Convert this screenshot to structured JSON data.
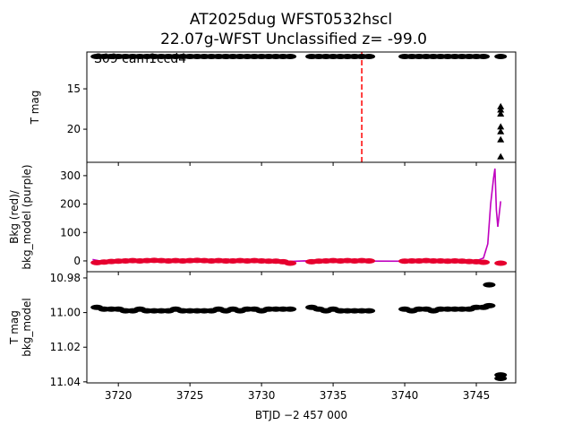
{
  "chart_data": [
    {
      "type": "scatter",
      "title": "AT2025dug  WFST0532hscl",
      "subtitle": "22.07g-WFST Unclassified z= -99.0",
      "ylabel": "T mag",
      "annotation": "S09 cam1ccd4",
      "invert_y": true,
      "xlim": [
        3717.8,
        3747.75
      ],
      "xticks": [
        3720,
        3725,
        3730,
        3735,
        3740,
        3745
      ],
      "ylim": [
        24.1,
        10.44
      ],
      "yticks": [
        15,
        20
      ],
      "vline": 3737.0,
      "vline_color": "#ff0000",
      "series": [
        {
          "marker": "circle",
          "color": "#000000",
          "x": [
            3718.5,
            3719,
            3719.5,
            3720,
            3720.5,
            3721,
            3721.5,
            3722,
            3722.5,
            3723,
            3723.5,
            3724,
            3724.5,
            3725,
            3725.5,
            3726,
            3726.5,
            3727,
            3727.5,
            3728,
            3728.5,
            3729,
            3729.5,
            3730,
            3730.5,
            3731,
            3731.5,
            3732,
            3733.5,
            3734,
            3734.5,
            3735,
            3735.5,
            3736,
            3736.5,
            3737,
            3737.5,
            3740,
            3740.5,
            3741,
            3741.5,
            3742,
            3742.5,
            3743,
            3743.5,
            3744,
            3744.5,
            3745,
            3745.5,
            3746.7
          ],
          "values": [
            11,
            11,
            11,
            11,
            11,
            11,
            11,
            11,
            11,
            11,
            11,
            11,
            11,
            11,
            11,
            11,
            11,
            11,
            11,
            11,
            11,
            11,
            11,
            11,
            11,
            11,
            11,
            11,
            11,
            11,
            11,
            11,
            11,
            11,
            11,
            11,
            11,
            11,
            11,
            11,
            11,
            11,
            11,
            11,
            11,
            11,
            11,
            11,
            11,
            11
          ]
        },
        {
          "marker": "triangle",
          "color": "#000000",
          "x": [
            3746.7,
            3746.7,
            3746.7,
            3746.7,
            3746.7,
            3746.7,
            3746.7
          ],
          "values": [
            17.2,
            17.6,
            18.1,
            19.7,
            20.3,
            21.3,
            23.4
          ]
        }
      ]
    },
    {
      "type": "scatter",
      "ylabel": "Bkg (red)/\nbkg_model (purple)",
      "xlim": [
        3717.8,
        3747.75
      ],
      "xticks": [
        3720,
        3725,
        3730,
        3735,
        3740,
        3745
      ],
      "ylim": [
        -38,
        347
      ],
      "yticks": [
        0,
        100,
        200,
        300
      ],
      "series": [
        {
          "marker": "line",
          "color": "#bf00bf",
          "x": [
            3718.2,
            3719,
            3725,
            3732,
            3733,
            3740,
            3745,
            3745.5,
            3745.8,
            3746.0,
            3746.2,
            3746.3,
            3746.4,
            3746.5,
            3746.7
          ],
          "values": [
            5,
            -3,
            0,
            -2,
            0,
            -1,
            0,
            10,
            60,
            200,
            290,
            325,
            180,
            120,
            210
          ]
        },
        {
          "marker": "circle",
          "color": "#e6002e",
          "x": [
            3718.5,
            3719,
            3719.5,
            3720,
            3720.5,
            3721,
            3721.5,
            3722,
            3722.5,
            3723,
            3723.5,
            3724,
            3724.5,
            3725,
            3725.5,
            3726,
            3726.5,
            3727,
            3727.5,
            3728,
            3728.5,
            3729,
            3729.5,
            3730,
            3730.5,
            3731,
            3731.5,
            3732,
            3733.5,
            3734,
            3734.5,
            3735,
            3735.5,
            3736,
            3736.5,
            3737,
            3737.5,
            3740,
            3740.5,
            3741,
            3741.5,
            3742,
            3742.5,
            3743,
            3743.5,
            3744,
            3744.5,
            3745,
            3745.5,
            3746.7
          ],
          "values": [
            -6,
            -4,
            -2,
            -1,
            0,
            1,
            0,
            1,
            2,
            1,
            0,
            1,
            0,
            1,
            2,
            1,
            0,
            1,
            0,
            0,
            1,
            0,
            1,
            0,
            -1,
            -1,
            -3,
            -8,
            -3,
            -1,
            0,
            1,
            0,
            1,
            0,
            1,
            0,
            -1,
            0,
            0,
            1,
            0,
            0,
            -1,
            0,
            -1,
            -2,
            -3,
            -5,
            -8
          ]
        }
      ]
    },
    {
      "type": "scatter",
      "ylabel": "T mag\nbkg_model",
      "xlabel": "BTJD −2 457 000",
      "invert_y": true,
      "xlim": [
        3717.8,
        3747.75
      ],
      "xticks": [
        3720,
        3725,
        3730,
        3735,
        3740,
        3745
      ],
      "ylim": [
        11.0406,
        10.9764
      ],
      "yticks": [
        {
          "value": 10.98,
          "label": "10.98"
        },
        {
          "value": 11.0,
          "label": "11.00"
        },
        {
          "value": 11.02,
          "label": "11.02"
        },
        {
          "value": 11.04,
          "label": "11.04"
        }
      ],
      "series": [
        {
          "marker": "circle",
          "color": "#000000",
          "x": [
            3718.5,
            3719,
            3719.5,
            3720,
            3720.5,
            3721,
            3721.5,
            3722,
            3722.5,
            3723,
            3723.5,
            3724,
            3724.5,
            3725,
            3725.5,
            3726,
            3726.5,
            3727,
            3727.5,
            3728,
            3728.5,
            3729,
            3729.5,
            3730,
            3730.5,
            3731,
            3731.5,
            3732,
            3733.5,
            3734,
            3734.5,
            3735,
            3735.5,
            3736,
            3736.5,
            3737,
            3737.5,
            3740,
            3740.5,
            3741,
            3741.5,
            3742,
            3742.5,
            3743,
            3743.5,
            3744,
            3744.5,
            3745,
            3745.5,
            3745.9,
            3745.9,
            3746.7,
            3746.7
          ],
          "values": [
            10.997,
            10.998,
            10.998,
            10.998,
            10.999,
            10.999,
            10.998,
            10.999,
            10.999,
            10.999,
            10.999,
            10.998,
            10.999,
            10.999,
            10.999,
            10.999,
            10.999,
            10.998,
            10.999,
            10.998,
            10.999,
            10.998,
            10.998,
            10.999,
            10.998,
            10.998,
            10.998,
            10.998,
            10.997,
            10.998,
            10.999,
            10.998,
            10.999,
            10.999,
            10.999,
            10.999,
            10.999,
            10.998,
            10.999,
            10.998,
            10.998,
            10.999,
            10.998,
            10.998,
            10.998,
            10.998,
            10.998,
            10.997,
            10.997,
            10.984,
            10.996,
            11.036,
            11.038
          ]
        }
      ]
    }
  ]
}
